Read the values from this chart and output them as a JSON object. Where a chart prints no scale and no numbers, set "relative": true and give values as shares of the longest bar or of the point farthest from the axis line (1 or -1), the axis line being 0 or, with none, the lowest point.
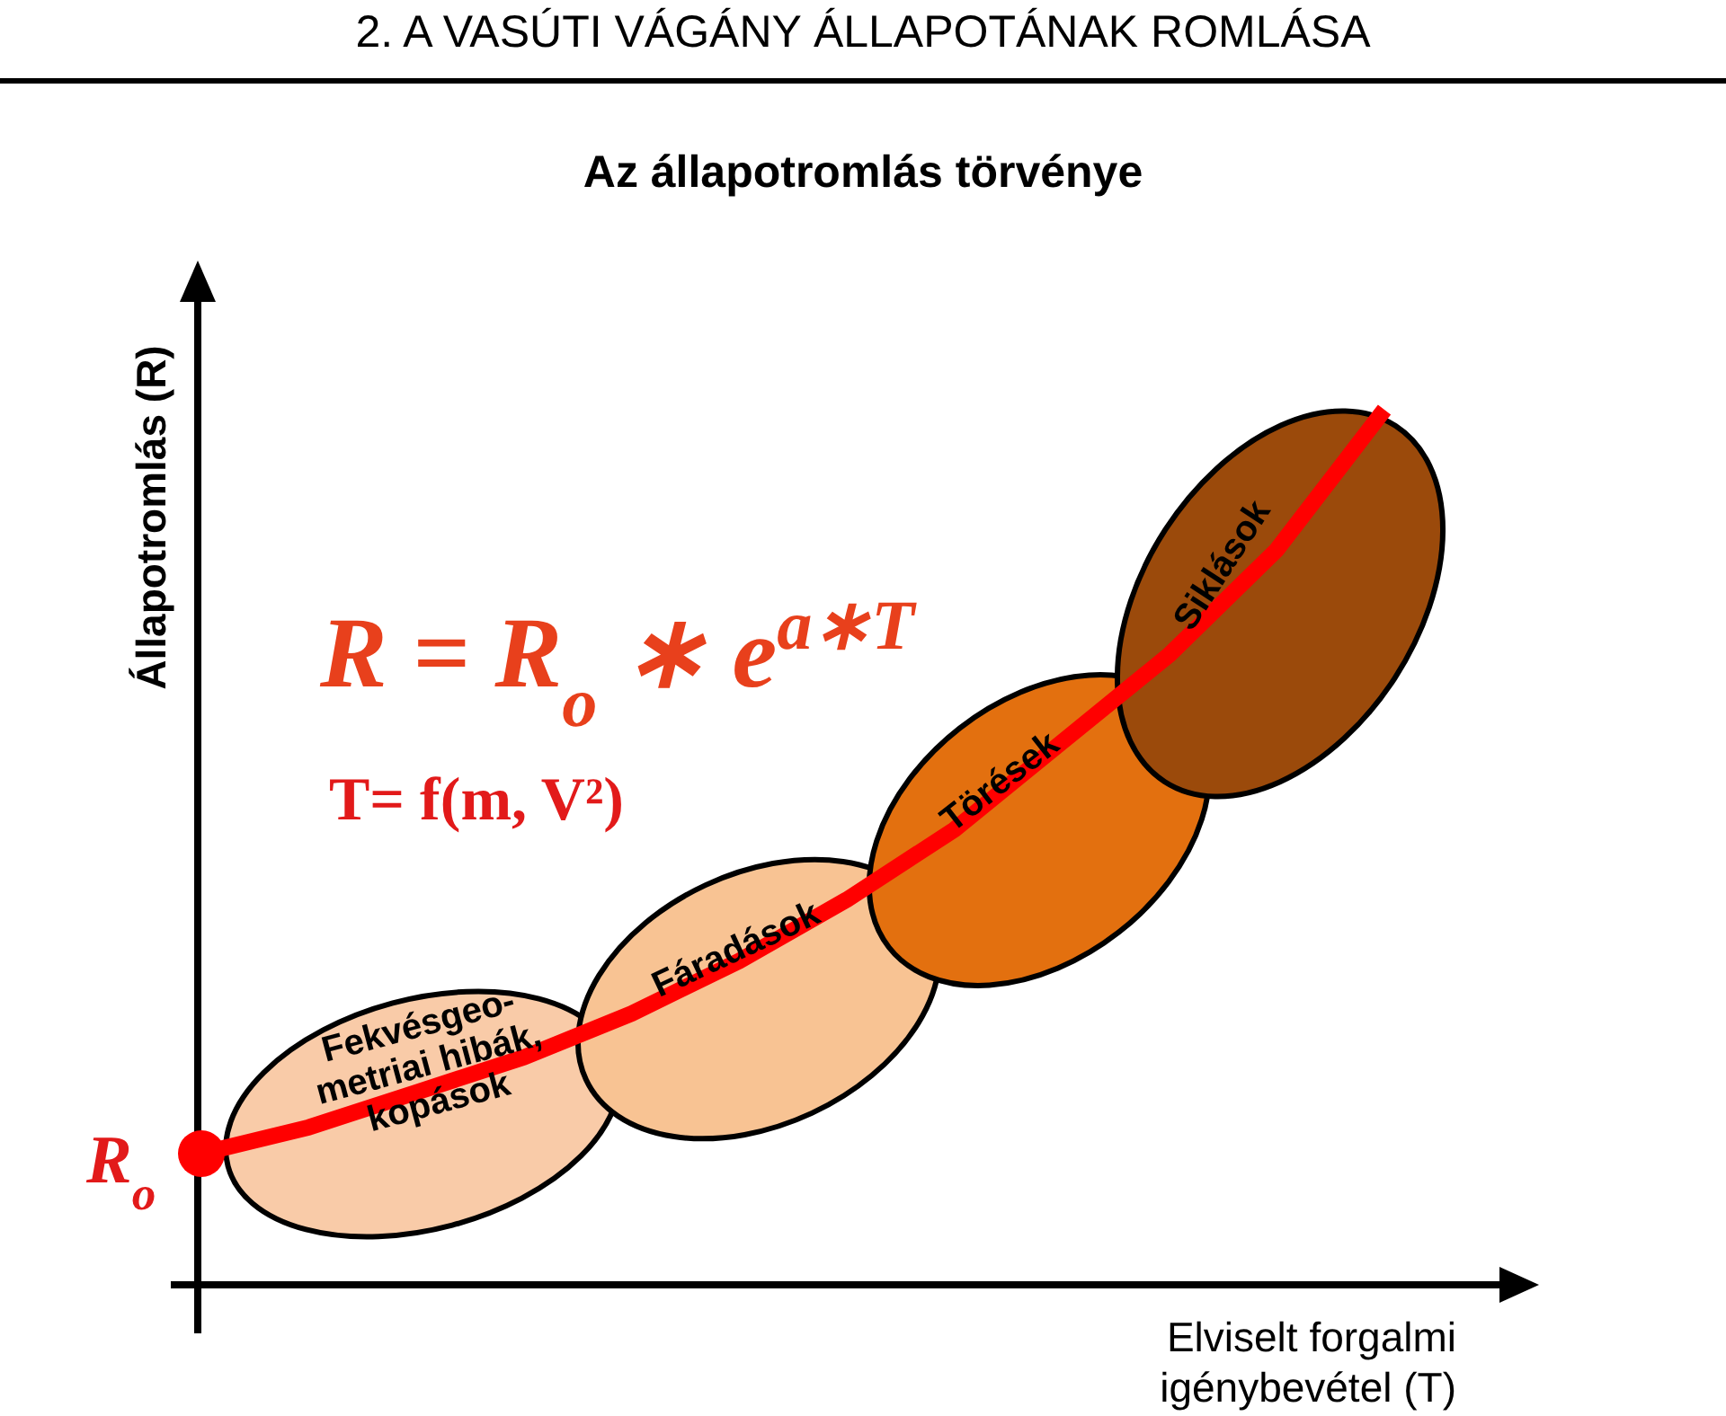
{
  "chart_data": {
    "type": "line",
    "title": "2. A VASÚTI VÁGÁNY ÁLLAPOTÁNAK ROMLÁSA",
    "subtitle": "Az állapotromlás törvénye",
    "ylabel": "Állapotromlás (R)",
    "xlabel": "Elviselt forgalmi igénybevétel (T)",
    "relative": true,
    "categories": [
      null,
      null,
      null,
      null,
      null,
      null,
      null,
      null,
      null,
      null,
      null,
      null
    ],
    "series": [
      {
        "color": "#ff0000",
        "values": [
          0.15,
          0.18,
          0.22,
          0.26,
          0.31,
          0.37,
          0.44,
          0.52,
          0.62,
          0.72,
          0.84,
          1
        ]
      }
    ],
    "marker": "none",
    "annotations": [
      "R = R$_{o}$ ∗ e$^{a∗T}$",
      "T= f(m, V²)",
      "R$_{o}$",
      "Fekvésgeo-metriai hibák, kopások",
      "Fáradások",
      "Törések",
      "Siklások"
    ]
  }
}
